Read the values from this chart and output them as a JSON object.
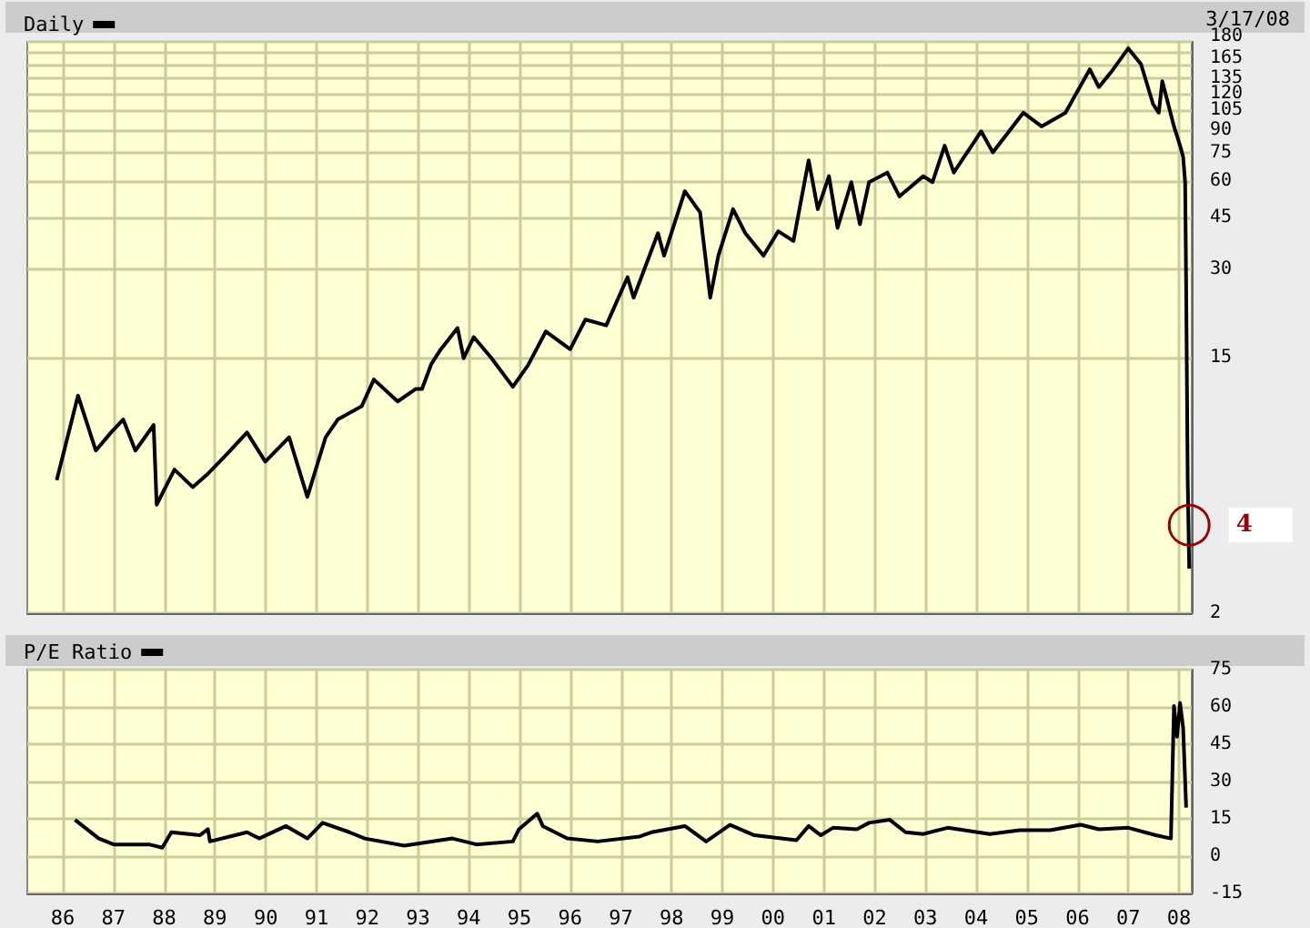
{
  "chart_data": [
    {
      "type": "line",
      "subtitle": "3/17/08",
      "log": true,
      "grid": true,
      "legend": "top left",
      "tick_labels": "y",
      "xlim": [
        1985.3,
        2008.25
      ],
      "xticks": [
        {
          "value": 1986,
          "label": null
        },
        {
          "value": 1987,
          "label": null
        },
        {
          "value": 1988,
          "label": null
        },
        {
          "value": 1989,
          "label": null
        },
        {
          "value": 1990,
          "label": null
        },
        {
          "value": 1991,
          "label": null
        },
        {
          "value": 1992,
          "label": null
        },
        {
          "value": 1993,
          "label": null
        },
        {
          "value": 1994,
          "label": null
        },
        {
          "value": 1995,
          "label": null
        },
        {
          "value": 1996,
          "label": null
        },
        {
          "value": 1997,
          "label": null
        },
        {
          "value": 1998,
          "label": null
        },
        {
          "value": 1999,
          "label": null
        },
        {
          "value": 2000,
          "label": null
        },
        {
          "value": 2001,
          "label": null
        },
        {
          "value": 2002,
          "label": null
        },
        {
          "value": 2003,
          "label": null
        },
        {
          "value": 2004,
          "label": null
        },
        {
          "value": 2005,
          "label": null
        },
        {
          "value": 2006,
          "label": null
        },
        {
          "value": 2007,
          "label": null
        },
        {
          "value": 2008,
          "label": null
        }
      ],
      "ylim": [
        2,
        180
      ],
      "yticks": [
        2,
        15,
        30,
        45,
        60,
        75,
        90,
        105,
        120,
        135,
        {
          "value": 150,
          "label": null
        },
        165,
        180
      ],
      "annotations": [
        {
          "text": "4",
          "x": 2008.2,
          "y": 4
        }
      ],
      "series": [
        {
          "name": "Daily",
          "color": "#000000",
          "x": [
            1985.88,
            1986.3,
            1986.65,
            1986.95,
            1987.19,
            1987.43,
            1987.79,
            1987.85,
            1988.2,
            1988.56,
            1988.86,
            1989.2,
            1989.63,
            1989.99,
            1990.46,
            1990.82,
            1991.18,
            1991.42,
            1991.89,
            1992.13,
            1992.6,
            1992.96,
            1993.08,
            1993.26,
            1993.44,
            1993.78,
            1993.9,
            1994.1,
            1994.45,
            1994.87,
            1995.17,
            1995.52,
            1996.0,
            1996.3,
            1996.71,
            1997.13,
            1997.25,
            1997.73,
            1997.85,
            1998.26,
            1998.56,
            1998.76,
            1998.92,
            1999.21,
            1999.45,
            1999.81,
            2000.1,
            2000.4,
            2000.7,
            2000.88,
            2001.1,
            2001.27,
            2001.54,
            2001.71,
            2001.89,
            2002.25,
            2002.49,
            2002.96,
            2003.14,
            2003.38,
            2003.56,
            2004.1,
            2004.33,
            2004.93,
            2005.29,
            2005.76,
            2006.24,
            2006.42,
            2006.65,
            2007.0,
            2007.25,
            2007.49,
            2007.6,
            2007.67,
            2007.9,
            2008.02,
            2008.08,
            2008.12,
            2008.14,
            2008.17,
            2008.2
          ],
          "values": [
            5.7,
            11.1,
            7.2,
            8.3,
            9.2,
            7.2,
            8.8,
            4.7,
            6.2,
            5.4,
            6.0,
            6.9,
            8.3,
            6.6,
            8.0,
            5.0,
            8.0,
            9.2,
            10.2,
            12.6,
            10.6,
            11.7,
            11.7,
            14.2,
            15.9,
            18.9,
            14.9,
            17.6,
            14.9,
            11.9,
            14.1,
            18.4,
            16.0,
            20.2,
            19.3,
            28.2,
            24.0,
            39.9,
            33.4,
            55.5,
            47.0,
            24.0,
            33.4,
            48.2,
            39.9,
            33.4,
            40.5,
            37.5,
            70.8,
            48.2,
            62.5,
            41.6,
            59.6,
            42.8,
            59.6,
            64.3,
            53.3,
            62.5,
            59.6,
            79.5,
            64.3,
            89.0,
            75.4,
            103,
            92.5,
            103,
            145,
            126,
            141,
            171,
            151,
            110,
            103,
            132,
            92.5,
            79.5,
            72.9,
            59.6,
            26.3,
            5.8,
            2.84
          ]
        }
      ]
    },
    {
      "type": "line",
      "grid": true,
      "legend": "top left",
      "xlim": [
        1985.3,
        2008.25
      ],
      "xticks": [
        {
          "value": 1986,
          "label": "86"
        },
        {
          "value": 1987,
          "label": "87"
        },
        {
          "value": 1988,
          "label": "88"
        },
        {
          "value": 1989,
          "label": "89"
        },
        {
          "value": 1990,
          "label": "90"
        },
        {
          "value": 1991,
          "label": "91"
        },
        {
          "value": 1992,
          "label": "92"
        },
        {
          "value": 1993,
          "label": "93"
        },
        {
          "value": 1994,
          "label": "94"
        },
        {
          "value": 1995,
          "label": "95"
        },
        {
          "value": 1996,
          "label": "96"
        },
        {
          "value": 1997,
          "label": "97"
        },
        {
          "value": 1998,
          "label": "98"
        },
        {
          "value": 1999,
          "label": "99"
        },
        {
          "value": 2000,
          "label": "00"
        },
        {
          "value": 2001,
          "label": "01"
        },
        {
          "value": 2002,
          "label": "02"
        },
        {
          "value": 2003,
          "label": "03"
        },
        {
          "value": 2004,
          "label": "04"
        },
        {
          "value": 2005,
          "label": "05"
        },
        {
          "value": 2006,
          "label": "06"
        },
        {
          "value": 2007,
          "label": "07"
        },
        {
          "value": 2008,
          "label": "08"
        }
      ],
      "ylim": [
        -15,
        75
      ],
      "yticks": [
        -15,
        0,
        15,
        30,
        45,
        60,
        75
      ],
      "series": [
        {
          "name": "P/E Ratio",
          "color": "#000000",
          "x": [
            1986.24,
            1986.71,
            1987.0,
            1987.7,
            1987.96,
            1988.14,
            1988.7,
            1988.86,
            1988.9,
            1989.63,
            1989.87,
            1990.4,
            1990.82,
            1991.12,
            1991.65,
            1991.95,
            1992.73,
            1993.68,
            1994.15,
            1994.87,
            1994.99,
            1995.35,
            1995.46,
            1995.94,
            1996.54,
            1997.37,
            1997.6,
            1998.26,
            1998.68,
            1999.15,
            1999.63,
            2000.46,
            2000.7,
            2000.94,
            2001.18,
            2001.65,
            2001.89,
            2002.3,
            2002.61,
            2002.96,
            2003.44,
            2004.27,
            2004.86,
            2005.46,
            2006.06,
            2006.42,
            2007.0,
            2007.54,
            2007.84,
            2007.9,
            2007.96,
            2008.02,
            2008.08,
            2008.14
          ],
          "values": [
            14.6,
            7.1,
            4.7,
            4.7,
            3.4,
            9.6,
            8.4,
            10.8,
            5.9,
            9.6,
            7.1,
            12.1,
            7.1,
            13.4,
            9.6,
            7.1,
            4.2,
            7.1,
            4.7,
            5.9,
            10.8,
            17.1,
            12.1,
            7.1,
            5.9,
            7.9,
            9.6,
            12.1,
            5.9,
            12.6,
            8.4,
            6.4,
            12.1,
            8.4,
            11.4,
            10.8,
            13.4,
            14.6,
            9.6,
            8.9,
            11.4,
            8.9,
            10.4,
            10.4,
            12.6,
            10.8,
            11.4,
            8.4,
            7.1,
            60.4,
            48,
            61.6,
            51.7,
            19.5
          ]
        }
      ]
    }
  ]
}
